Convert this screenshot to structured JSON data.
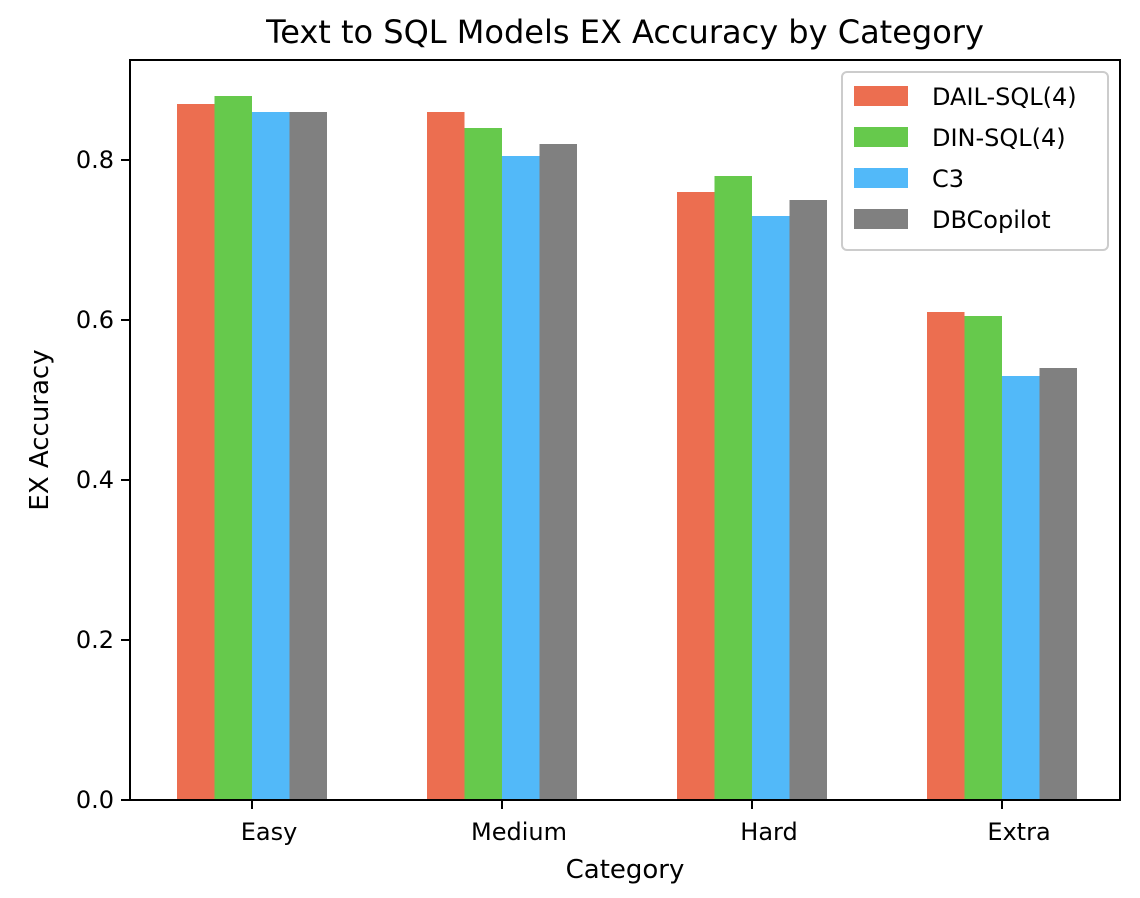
{
  "chart_data": {
    "type": "bar",
    "title": "Text to SQL Models EX Accuracy by Category",
    "xlabel": "Category",
    "ylabel": "EX Accuracy",
    "categories": [
      "Easy",
      "Medium",
      "Hard",
      "Extra"
    ],
    "series": [
      {
        "name": "DAIL-SQL(4)",
        "color": "#ec6e50",
        "values": [
          0.87,
          0.86,
          0.76,
          0.61
        ]
      },
      {
        "name": "DIN-SQL(4)",
        "color": "#66c94c",
        "values": [
          0.88,
          0.84,
          0.78,
          0.605
        ]
      },
      {
        "name": "C3",
        "color": "#52b9f9",
        "values": [
          0.86,
          0.805,
          0.73,
          0.53
        ]
      },
      {
        "name": "DBCopilot",
        "color": "#808080",
        "values": [
          0.86,
          0.82,
          0.75,
          0.54
        ]
      }
    ],
    "ylim": [
      0,
      0.925
    ],
    "yticks": [
      "0.0",
      "0.2",
      "0.4",
      "0.6",
      "0.8"
    ],
    "ytick_values": [
      0.0,
      0.2,
      0.4,
      0.6,
      0.8
    ],
    "grid": false,
    "legend_position": "top-right"
  }
}
